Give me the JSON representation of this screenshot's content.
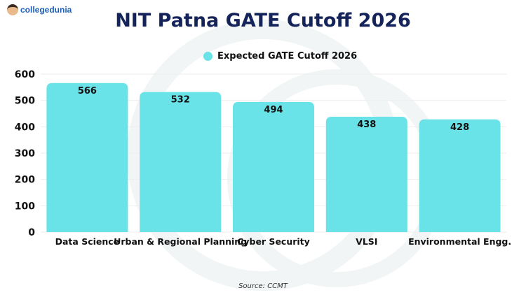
{
  "brand": "collegedunia",
  "chart_data": {
    "type": "bar",
    "title": "NIT Patna GATE Cutoff 2026",
    "categories": [
      "Data Science",
      "Urban & Regional Planning",
      "Cyber Security",
      "VLSI",
      "Environmental Engg."
    ],
    "series": [
      {
        "name": "Expected GATE Cutoff 2026",
        "values": [
          566,
          532,
          494,
          438,
          428
        ],
        "color": "#6ae3e8"
      }
    ],
    "ylim": [
      0,
      600
    ],
    "yticks": [
      0,
      100,
      200,
      300,
      400,
      500,
      600
    ],
    "grid": true,
    "legend": "top-center",
    "source": "Source: CCMT"
  }
}
